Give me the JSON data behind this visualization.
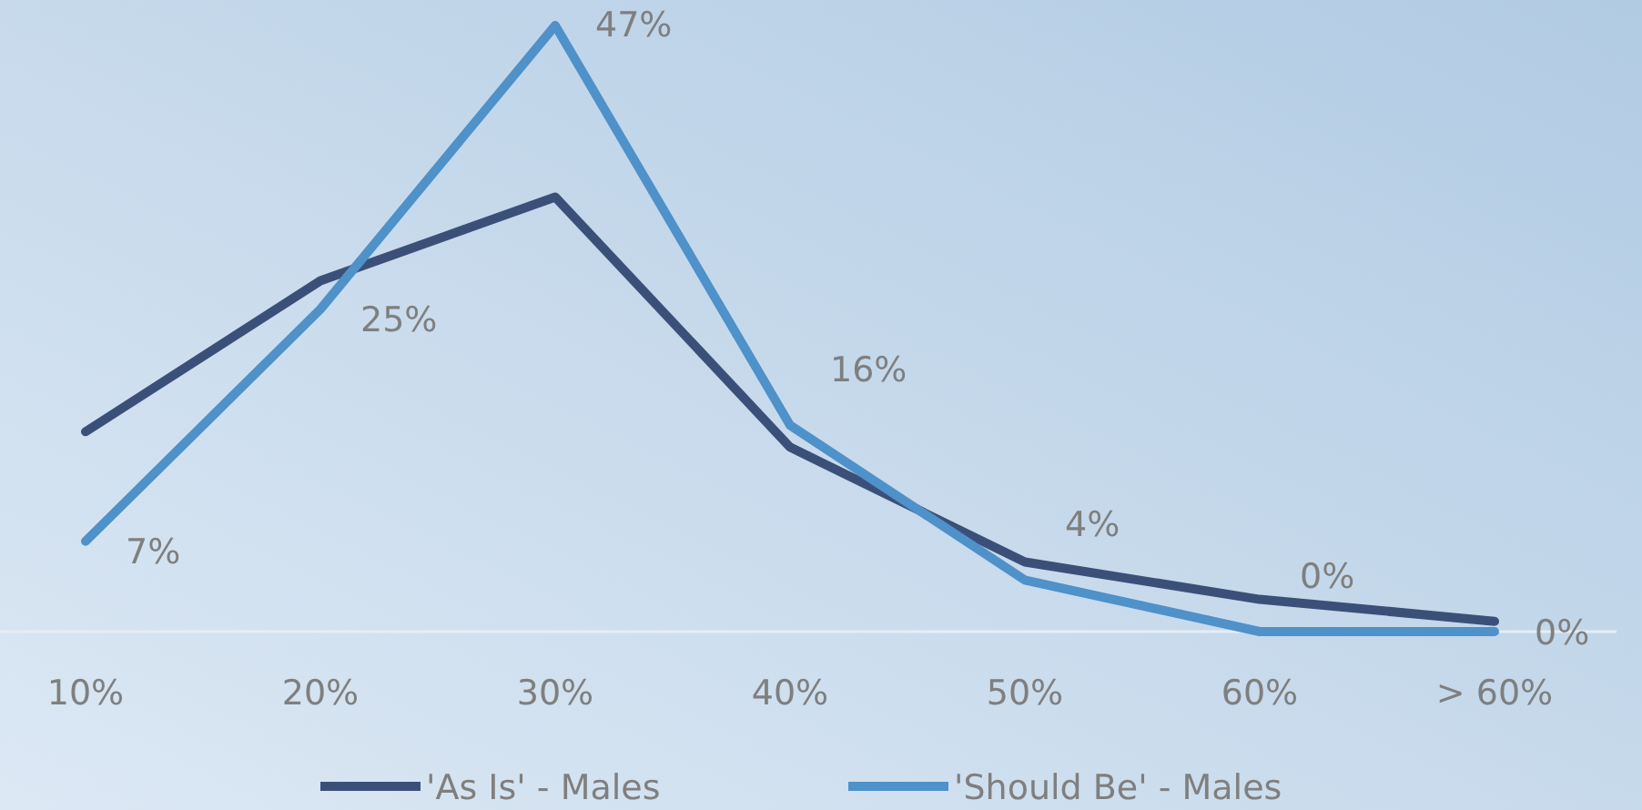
{
  "chart_data": {
    "type": "line",
    "categories": [
      "10%",
      "20%",
      "30%",
      "40%",
      "50%",
      "60%",
      "> 60%"
    ],
    "series": [
      {
        "name": "'As Is' - Males",
        "color": "#3b5079",
        "values": [
          15.5,
          27.2,
          33.7,
          14.3,
          5.4,
          2.5,
          0.8
        ]
      },
      {
        "name": "'Should Be' - Males",
        "color": "#4f91c9",
        "values": [
          7,
          25,
          47,
          16,
          4,
          0,
          0
        ],
        "value_labels": [
          "7%",
          "25%",
          "47%",
          "16%",
          "4%",
          "0%",
          "0%"
        ]
      }
    ],
    "legend": "bottom",
    "marker": "none",
    "line_style": "solid"
  }
}
